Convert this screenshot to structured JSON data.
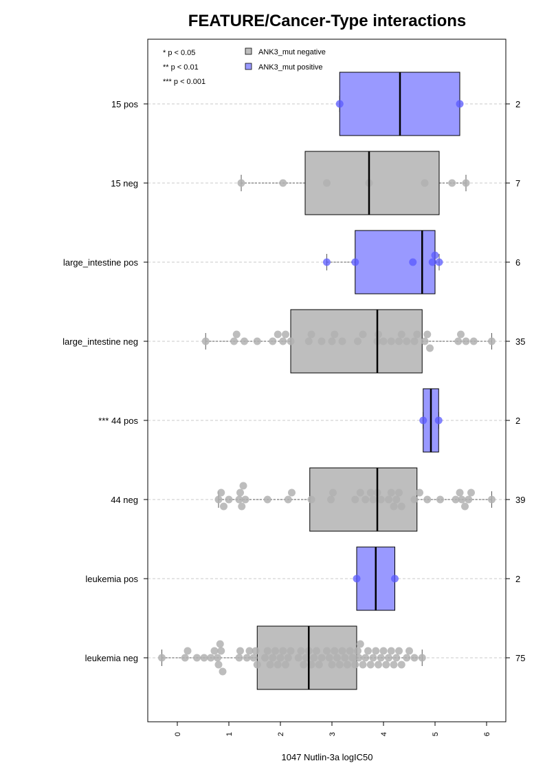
{
  "chart_data": {
    "type": "boxplot",
    "title": "FEATURE/Cancer-Type interactions",
    "xlabel": "1047 Nutlin-3a logIC50",
    "xlim": [
      -0.55,
      6.35
    ],
    "xticks": [
      "0",
      "1",
      "2",
      "3",
      "4",
      "5",
      "6"
    ],
    "grid": "horizontal dashed",
    "legend_position": "top-left",
    "significance_legend": [
      "* p < 0.05",
      "** p < 0.01",
      "*** p < 0.001"
    ],
    "series_legend": [
      {
        "label": "ANK3_mut negative",
        "color": "#bebebe"
      },
      {
        "label": "ANK3_mut positive",
        "color": "#9999ff"
      }
    ],
    "groups": [
      {
        "label": "15 pos",
        "kind": "positive",
        "n": "2",
        "q1": 3.15,
        "median": 4.32,
        "q3": 5.48,
        "whisker_low": 3.15,
        "whisker_high": 5.48,
        "points": [
          3.15,
          5.48
        ]
      },
      {
        "label": "15 neg",
        "kind": "negative",
        "n": "7",
        "q1": 2.48,
        "median": 3.72,
        "q3": 5.08,
        "whisker_low": 1.24,
        "whisker_high": 5.6,
        "points": [
          1.24,
          2.05,
          2.9,
          3.72,
          4.8,
          5.33,
          5.6
        ]
      },
      {
        "label": "large_intestine pos",
        "kind": "positive",
        "n": "6",
        "q1": 3.45,
        "median": 4.75,
        "q3": 5.0,
        "whisker_low": 2.9,
        "whisker_high": 5.08,
        "points": [
          2.9,
          3.45,
          4.57,
          4.95,
          5.0,
          5.08
        ]
      },
      {
        "label": "large_intestine neg",
        "kind": "negative",
        "n": "35",
        "q1": 2.2,
        "median": 3.88,
        "q3": 4.75,
        "whisker_low": 0.55,
        "whisker_high": 6.1,
        "points": [
          0.55,
          1.1,
          1.15,
          1.3,
          1.55,
          1.85,
          1.95,
          2.05,
          2.1,
          2.2,
          2.55,
          2.6,
          2.8,
          3.0,
          3.05,
          3.2,
          3.5,
          3.6,
          3.88,
          3.9,
          4.0,
          4.15,
          4.3,
          4.35,
          4.45,
          4.6,
          4.65,
          4.8,
          4.85,
          4.9,
          5.45,
          5.5,
          5.6,
          5.75,
          6.1
        ]
      },
      {
        "label": "*** 44 pos",
        "kind": "positive",
        "n": "2",
        "q1": 4.77,
        "median": 4.92,
        "q3": 5.07,
        "whisker_low": 4.77,
        "whisker_high": 5.07,
        "points": [
          4.77,
          5.07
        ]
      },
      {
        "label": "44 neg",
        "kind": "negative",
        "n": "39",
        "q1": 2.57,
        "median": 3.88,
        "q3": 4.65,
        "whisker_low": 0.8,
        "whisker_high": 6.1,
        "points": [
          0.8,
          0.85,
          0.9,
          1.0,
          1.2,
          1.22,
          1.25,
          1.28,
          1.32,
          1.75,
          2.15,
          2.22,
          2.6,
          2.98,
          3.02,
          3.45,
          3.55,
          3.65,
          3.75,
          3.8,
          3.88,
          3.95,
          4.1,
          4.15,
          4.2,
          4.25,
          4.3,
          4.35,
          4.6,
          4.7,
          4.85,
          5.1,
          5.4,
          5.48,
          5.52,
          5.58,
          5.65,
          5.7,
          6.1
        ]
      },
      {
        "label": "leukemia pos",
        "kind": "positive",
        "n": "2",
        "q1": 3.48,
        "median": 3.85,
        "q3": 4.22,
        "whisker_low": 3.48,
        "whisker_high": 4.22,
        "points": [
          3.48,
          4.22
        ]
      },
      {
        "label": "leukemia neg",
        "kind": "negative",
        "n": "75",
        "q1": 1.55,
        "median": 2.55,
        "q3": 3.48,
        "whisker_low": -0.3,
        "whisker_high": 4.75,
        "points": [
          -0.3,
          0.15,
          0.2,
          0.38,
          0.52,
          0.65,
          0.72,
          0.78,
          0.8,
          0.83,
          0.85,
          0.88,
          1.2,
          1.22,
          1.35,
          1.4,
          1.48,
          1.52,
          1.55,
          1.7,
          1.75,
          1.8,
          1.85,
          1.9,
          1.95,
          2.0,
          2.05,
          2.1,
          2.15,
          2.2,
          2.35,
          2.4,
          2.45,
          2.5,
          2.55,
          2.6,
          2.65,
          2.7,
          2.75,
          2.8,
          2.9,
          2.95,
          3.0,
          3.05,
          3.1,
          3.15,
          3.2,
          3.25,
          3.3,
          3.35,
          3.4,
          3.45,
          3.5,
          3.52,
          3.55,
          3.6,
          3.65,
          3.7,
          3.75,
          3.8,
          3.85,
          3.9,
          3.95,
          4.0,
          4.05,
          4.1,
          4.15,
          4.2,
          4.25,
          4.3,
          4.35,
          4.45,
          4.5,
          4.6,
          4.75
        ]
      }
    ]
  }
}
